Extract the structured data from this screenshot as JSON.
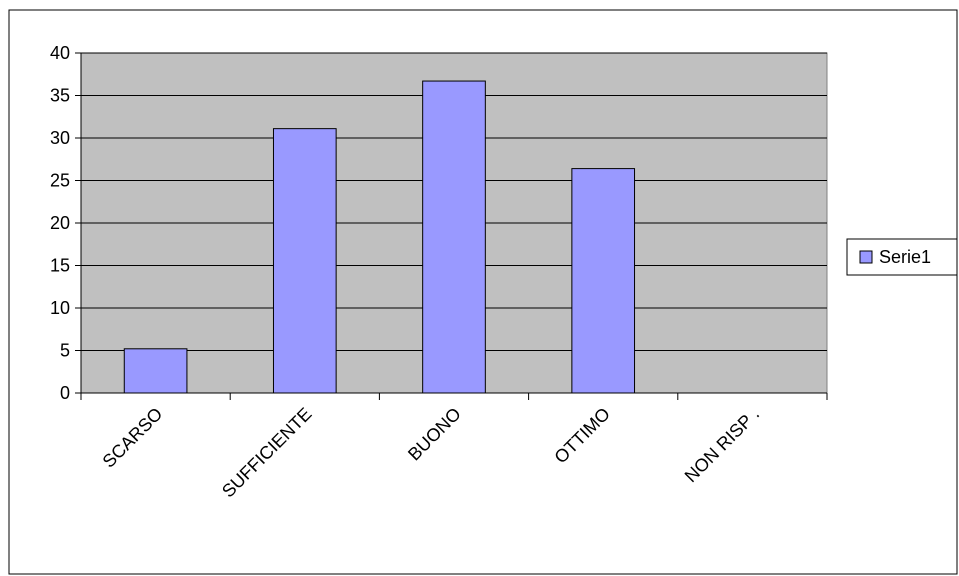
{
  "colors": {
    "plot_background": "#c0c0c0",
    "bar_fill": "#9999ff",
    "bar_stroke": "#000000",
    "grid": "#000000",
    "frame": "#000000"
  },
  "chart_data": {
    "type": "bar",
    "title": "",
    "xlabel": "",
    "ylabel": "",
    "categories": [
      "SCARSO",
      "SUFFICIENTE",
      "BUONO",
      "OTTIMO",
      "NON RISP ."
    ],
    "series": [
      {
        "name": "Serie1",
        "values": [
          5.2,
          31.1,
          36.7,
          26.4,
          0
        ]
      }
    ],
    "ylim": [
      0,
      40
    ],
    "yticks": [
      0,
      5,
      10,
      15,
      20,
      25,
      30,
      35,
      40
    ],
    "grid": true,
    "legend": {
      "position": "right",
      "entries": [
        "Serie1"
      ]
    }
  }
}
